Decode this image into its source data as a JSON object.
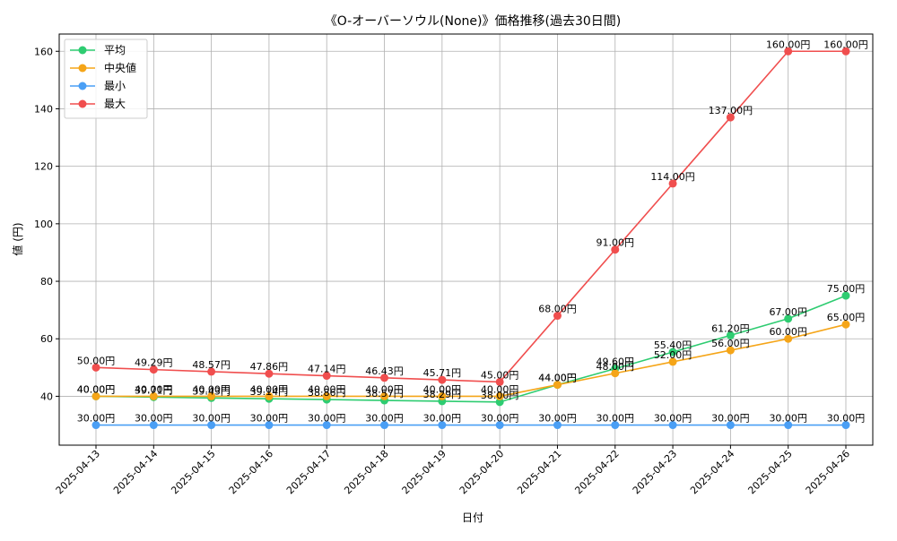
{
  "chart_data": {
    "type": "line",
    "title": "《O-オーバーソウル(None)》価格推移(過去30日間)",
    "xlabel": "日付",
    "ylabel": "値 (円)",
    "ylim": [
      23,
      166
    ],
    "yticks": [
      40,
      60,
      80,
      100,
      120,
      140,
      160
    ],
    "grid": true,
    "legend_position": "top-left",
    "value_suffix": "円",
    "categories": [
      "2025-04-13",
      "2025-04-14",
      "2025-04-15",
      "2025-04-16",
      "2025-04-17",
      "2025-04-18",
      "2025-04-19",
      "2025-04-20",
      "2025-04-21",
      "2025-04-22",
      "2025-04-23",
      "2025-04-24",
      "2025-04-25",
      "2025-04-26"
    ],
    "series": [
      {
        "name": "平均",
        "color": "#2ecc71",
        "values": [
          40.0,
          39.71,
          39.43,
          39.14,
          38.86,
          38.57,
          38.29,
          38.0,
          44.0,
          49.6,
          55.4,
          61.2,
          67.0,
          75.0
        ]
      },
      {
        "name": "中央値",
        "color": "#f5a518",
        "values": [
          40.0,
          40.0,
          40.0,
          40.0,
          40.0,
          40.0,
          40.0,
          40.0,
          44.0,
          48.0,
          52.0,
          56.0,
          60.0,
          65.0
        ]
      },
      {
        "name": "最小",
        "color": "#4a9ff5",
        "values": [
          30.0,
          30.0,
          30.0,
          30.0,
          30.0,
          30.0,
          30.0,
          30.0,
          30.0,
          30.0,
          30.0,
          30.0,
          30.0,
          30.0
        ]
      },
      {
        "name": "最大",
        "color": "#f04e4e",
        "values": [
          50.0,
          49.29,
          48.57,
          47.86,
          47.14,
          46.43,
          45.71,
          45.0,
          68.0,
          91.0,
          114.0,
          137.0,
          160.0,
          160.0
        ]
      }
    ]
  }
}
